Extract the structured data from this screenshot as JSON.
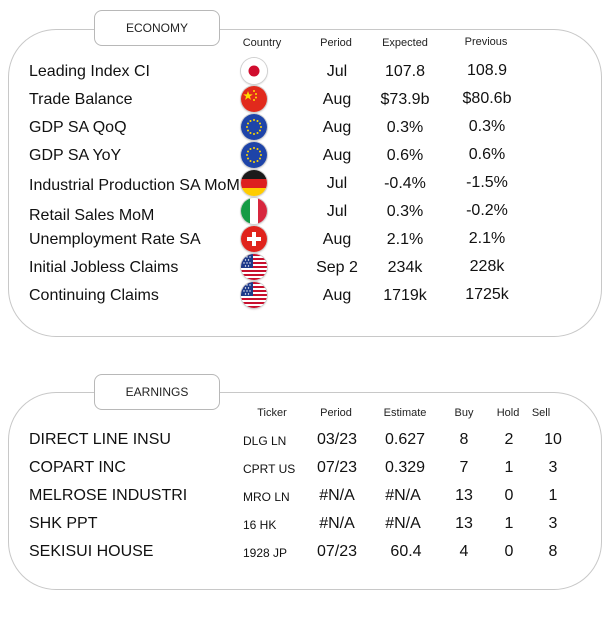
{
  "economy": {
    "title": "ECONOMY",
    "headers": {
      "country": "Country",
      "period": "Period",
      "expected": "Expected",
      "previous": "Previous"
    },
    "rows": [
      {
        "indicator": "Leading Index CI",
        "country_flag": "japan-flag-icon",
        "period": "Jul",
        "expected": "107.8",
        "previous": "108.9"
      },
      {
        "indicator": "Trade Balance",
        "country_flag": "china-flag-icon",
        "period": "Aug",
        "expected": "$73.9b",
        "previous": "$80.6b"
      },
      {
        "indicator": "GDP SA QoQ",
        "country_flag": "eu-flag-icon",
        "period": "Aug",
        "expected": "0.3%",
        "previous": "0.3%"
      },
      {
        "indicator": "GDP SA YoY",
        "country_flag": "eu-flag-icon",
        "period": "Aug",
        "expected": "0.6%",
        "previous": "0.6%"
      },
      {
        "indicator": "Industrial Production SA MoM",
        "country_flag": "germany-flag-icon",
        "period": "Jul",
        "expected": "-0.4%",
        "previous": "-1.5%"
      },
      {
        "indicator": "Retail Sales MoM",
        "country_flag": "italy-flag-icon",
        "period": "Jul",
        "expected": "0.3%",
        "previous": "-0.2%"
      },
      {
        "indicator": "Unemployment Rate SA",
        "country_flag": "switzerland-flag-icon",
        "period": "Aug",
        "expected": "2.1%",
        "previous": "2.1%"
      },
      {
        "indicator": "Initial Jobless Claims",
        "country_flag": "usa-flag-icon",
        "period": "Sep 2",
        "expected": "234k",
        "previous": "228k"
      },
      {
        "indicator": "Continuing Claims",
        "country_flag": "usa-flag-icon",
        "period": "Aug",
        "expected": "1719k",
        "previous": "1725k"
      }
    ]
  },
  "earnings": {
    "title": "EARNINGS",
    "headers": {
      "ticker": "Ticker",
      "period": "Period",
      "estimate": "Estimate",
      "buy": "Buy",
      "hold": "Hold",
      "sell": "Sell"
    },
    "rows": [
      {
        "company": "DIRECT LINE INSU",
        "ticker": "DLG LN",
        "period": "03/23",
        "estimate": "0.627",
        "buy": "8",
        "hold": "2",
        "sell": "10"
      },
      {
        "company": "COPART INC",
        "ticker": "CPRT US",
        "period": "07/23",
        "estimate": "0.329",
        "buy": "7",
        "hold": "1",
        "sell": "3"
      },
      {
        "company": "MELROSE INDUSTRI",
        "ticker": "MRO LN",
        "period": "#N/A",
        "estimate": "#N/A",
        "buy": "13",
        "hold": "0",
        "sell": "1"
      },
      {
        "company": "SHK PPT",
        "ticker": "16 HK",
        "period": "#N/A",
        "estimate": "#N/A",
        "buy": "13",
        "hold": "1",
        "sell": "3"
      },
      {
        "company": "SEKISUI HOUSE",
        "ticker": "1928 JP",
        "period": "07/23",
        "estimate": "60.4",
        "buy": "4",
        "hold": "0",
        "sell": "8"
      }
    ]
  }
}
